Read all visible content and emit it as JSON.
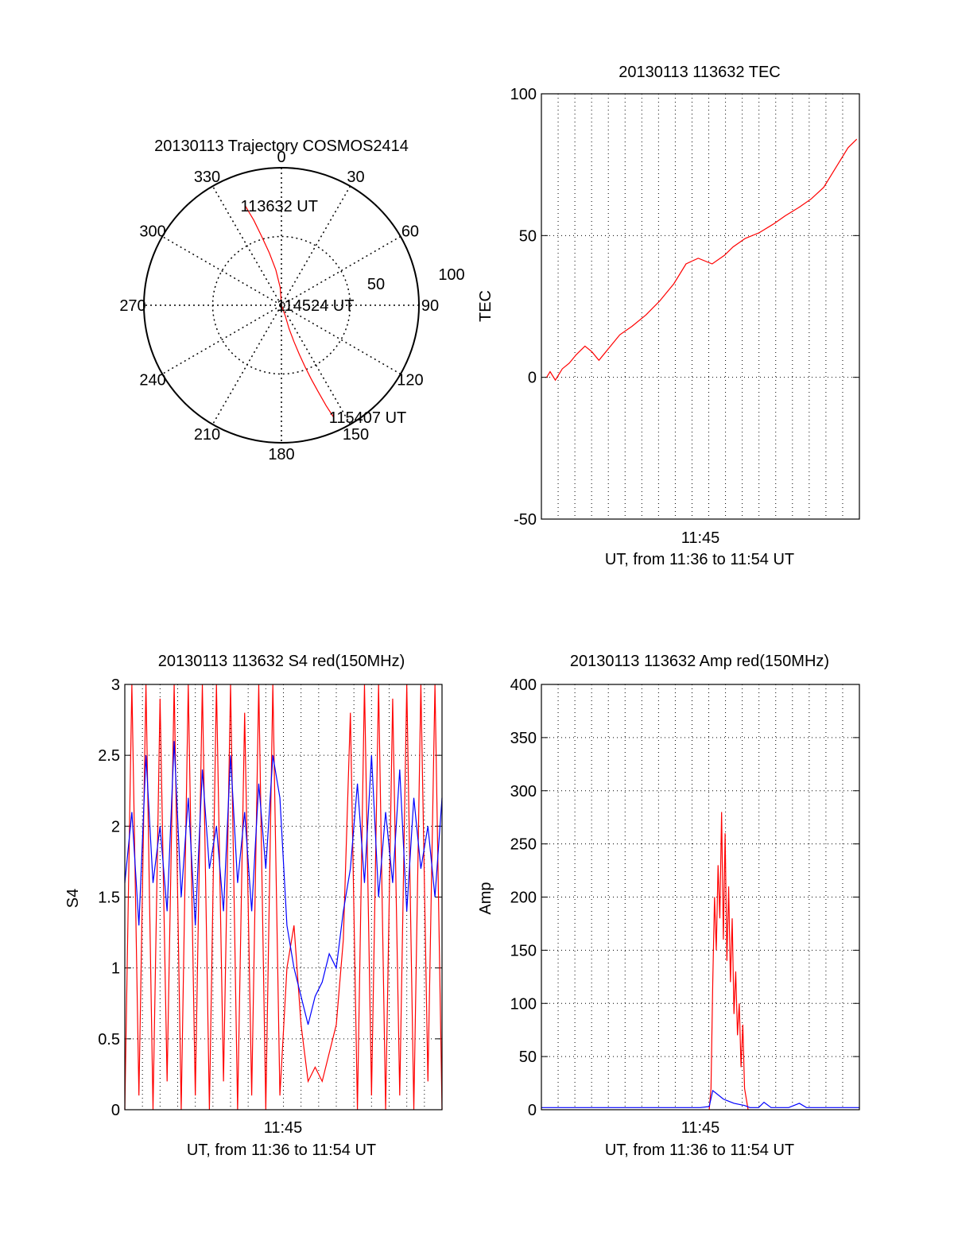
{
  "chart_data": [
    {
      "type": "polar",
      "title": "20130113 Trajectory COSMOS2414",
      "angle_labels": [
        "0",
        "30",
        "60",
        "90",
        "120",
        "150",
        "180",
        "210",
        "240",
        "270",
        "300",
        "330"
      ],
      "radius_labels": [
        "50",
        "100"
      ],
      "rlim": [
        0,
        100
      ],
      "track_color": "#ff0000",
      "trajectory": [
        [
          340,
          77
        ],
        [
          342,
          65
        ],
        [
          344,
          52
        ],
        [
          347,
          39
        ],
        [
          351,
          26
        ],
        [
          356,
          13
        ],
        [
          0,
          0
        ],
        [
          160,
          8
        ],
        [
          162,
          18
        ],
        [
          161,
          28
        ],
        [
          160,
          38
        ],
        [
          159,
          48
        ],
        [
          158,
          58
        ],
        [
          157,
          68
        ],
        [
          156,
          80
        ],
        [
          155,
          90
        ]
      ],
      "annotations": [
        {
          "text": "113632 UT",
          "az": 340,
          "r": 77
        },
        {
          "text": "114524 UT",
          "az": 0,
          "r": 0
        },
        {
          "text": "115407 UT",
          "az": 155,
          "r": 90
        }
      ]
    },
    {
      "type": "line",
      "title": "20130113 113632 TEC",
      "ylabel": "TEC",
      "xlabel": "UT, from 11:36 to 11:54 UT",
      "xtick_label": "11:45",
      "xlim": [
        0,
        18.25
      ],
      "ylim": [
        -50,
        100
      ],
      "yticks": [
        "-50",
        "0",
        "50",
        "100"
      ],
      "grid": true,
      "series": [
        {
          "color": "#ff0000",
          "x": [
            0.3,
            0.5,
            0.8,
            1.2,
            1.6,
            2.0,
            2.5,
            2.9,
            3.3,
            3.7,
            4.1,
            4.5,
            5.2,
            6.0,
            6.8,
            7.6,
            8.3,
            9.0,
            9.8,
            10.5,
            11.0,
            11.7,
            12.5,
            13.3,
            14.0,
            14.8,
            15.5,
            16.2,
            17.0,
            17.6,
            18.1
          ],
          "y": [
            0,
            2,
            -1,
            3,
            5,
            8,
            11,
            9,
            6,
            9,
            12,
            15,
            18,
            22,
            27,
            33,
            40,
            42,
            40,
            43,
            46,
            49,
            51,
            54,
            57,
            60,
            63,
            67,
            75,
            81,
            84
          ]
        }
      ]
    },
    {
      "type": "line",
      "title": "20130113 113632 S4 red(150MHz)",
      "ylabel": "S4",
      "xlabel": "UT, from 11:36 to 11:54 UT",
      "xtick_label": "11:45",
      "xlim": [
        0,
        18
      ],
      "ylim": [
        0,
        3
      ],
      "yticks": [
        "0",
        "0.5",
        "1",
        "1.5",
        "2",
        "2.5",
        "3"
      ],
      "grid": true,
      "series": [
        {
          "color": "#ff0000",
          "x": [
            0.0,
            0.4,
            0.8,
            1.2,
            1.6,
            2.0,
            2.4,
            2.8,
            3.2,
            3.6,
            4.0,
            4.4,
            4.8,
            5.2,
            5.6,
            6.0,
            6.4,
            6.8,
            7.2,
            7.6,
            8.0,
            8.4,
            8.8,
            9.2,
            9.6,
            10.0,
            10.4,
            10.8,
            11.2,
            11.6,
            12.0,
            12.4,
            12.8,
            13.2,
            13.6,
            14.0,
            14.4,
            14.8,
            15.2,
            15.6,
            16.0,
            16.4,
            16.8,
            17.2,
            17.6,
            18.0
          ],
          "y": [
            0.0,
            3.0,
            0.1,
            3.0,
            0.0,
            2.9,
            0.2,
            3.0,
            0.0,
            3.0,
            0.1,
            3.0,
            0.0,
            3.0,
            0.2,
            3.0,
            0.0,
            2.8,
            0.1,
            3.0,
            0.0,
            3.0,
            0.1,
            1.0,
            1.3,
            0.6,
            0.2,
            0.3,
            0.2,
            0.4,
            0.6,
            1.2,
            2.8,
            0.0,
            3.0,
            0.1,
            3.0,
            0.0,
            2.9,
            0.1,
            3.0,
            0.0,
            3.0,
            0.2,
            3.0,
            0.0
          ]
        },
        {
          "color": "#0000ff",
          "x": [
            0.0,
            0.4,
            0.8,
            1.2,
            1.6,
            2.0,
            2.4,
            2.8,
            3.2,
            3.6,
            4.0,
            4.4,
            4.8,
            5.2,
            5.6,
            6.0,
            6.4,
            6.8,
            7.2,
            7.6,
            8.0,
            8.4,
            8.8,
            9.2,
            9.6,
            10.0,
            10.4,
            10.8,
            11.2,
            11.6,
            12.0,
            12.4,
            12.8,
            13.2,
            13.6,
            14.0,
            14.4,
            14.8,
            15.2,
            15.6,
            16.0,
            16.4,
            16.8,
            17.2,
            17.6,
            18.0
          ],
          "y": [
            1.6,
            2.1,
            1.3,
            2.5,
            1.6,
            2.0,
            1.4,
            2.6,
            1.5,
            2.2,
            1.3,
            2.4,
            1.7,
            2.0,
            1.4,
            2.5,
            1.6,
            2.1,
            1.4,
            2.3,
            1.7,
            2.5,
            2.2,
            1.3,
            1.0,
            0.8,
            0.6,
            0.8,
            0.9,
            1.1,
            1.0,
            1.4,
            1.7,
            2.3,
            1.6,
            2.5,
            1.5,
            2.1,
            1.6,
            2.4,
            1.4,
            2.2,
            1.7,
            2.0,
            1.5,
            2.2
          ]
        }
      ]
    },
    {
      "type": "line",
      "title": "20130113 113632 Amp red(150MHz)",
      "ylabel": "Amp",
      "xlabel": "UT, from 11:36 to 11:54 UT",
      "xtick_label": "11:45",
      "xlim": [
        0,
        18
      ],
      "ylim": [
        0,
        400
      ],
      "yticks": [
        "0",
        "50",
        "100",
        "150",
        "200",
        "250",
        "300",
        "350",
        "400"
      ],
      "grid": true,
      "series": [
        {
          "color": "#ff0000",
          "x": [
            9.5,
            9.6,
            9.7,
            9.8,
            9.9,
            10.0,
            10.1,
            10.2,
            10.3,
            10.4,
            10.5,
            10.6,
            10.7,
            10.8,
            10.9,
            11.0,
            11.1,
            11.2,
            11.3,
            11.4,
            11.5,
            11.6,
            11.7
          ],
          "y": [
            0,
            20,
            120,
            200,
            150,
            230,
            180,
            280,
            160,
            260,
            140,
            210,
            120,
            180,
            90,
            130,
            70,
            100,
            40,
            80,
            20,
            10,
            0
          ]
        },
        {
          "color": "#0000ff",
          "x": [
            0,
            1,
            2,
            3,
            4,
            5,
            6,
            7,
            8,
            9,
            9.5,
            9.7,
            10.0,
            10.3,
            10.6,
            10.9,
            11.2,
            11.5,
            11.8,
            12.3,
            12.6,
            13,
            14,
            14.6,
            15,
            16,
            17,
            18
          ],
          "y": [
            2,
            2,
            2,
            2,
            2,
            2,
            2,
            2,
            2,
            2,
            3,
            18,
            14,
            10,
            8,
            6,
            5,
            4,
            2,
            2,
            7,
            2,
            2,
            6,
            2,
            2,
            2,
            2
          ]
        }
      ]
    }
  ]
}
